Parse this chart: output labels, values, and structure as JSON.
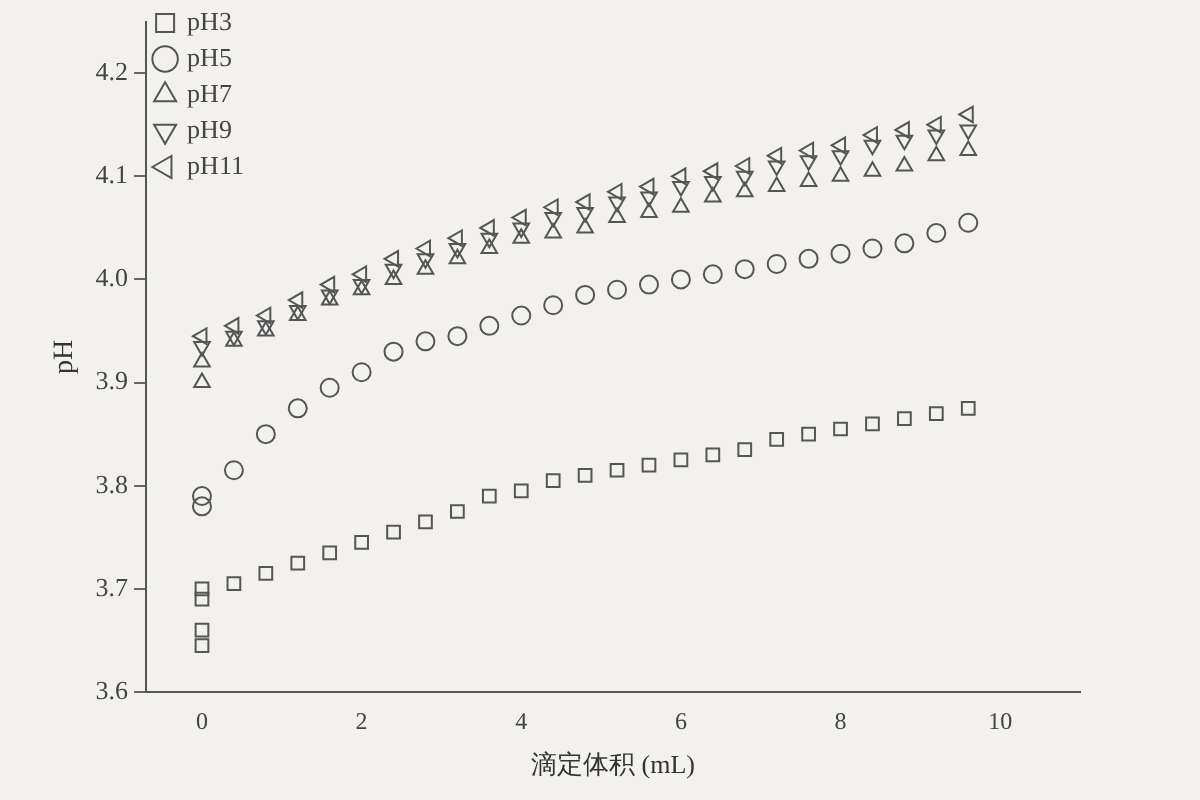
{
  "chart_data": {
    "type": "scatter",
    "xlabel": "滴定体积 (mL)",
    "ylabel": "pH",
    "xlim": [
      -0.7,
      11
    ],
    "xticks": [
      0,
      2,
      4,
      6,
      8,
      10
    ],
    "ylim": [
      3.6,
      4.25
    ],
    "yticks": [
      3.6,
      3.7,
      3.8,
      3.9,
      {
        "value": 4,
        "label": "4.0"
      },
      4.1,
      4.2
    ],
    "grid": false,
    "legend": "top left",
    "series": [
      {
        "name": "pH3",
        "color": "#555555",
        "marker": "square",
        "x": [
          0,
          0,
          0,
          0,
          0.4,
          0.8,
          1.2,
          1.6,
          2,
          2.4,
          2.8,
          3.2,
          3.6,
          4,
          4.4,
          4.8,
          5.2,
          5.6,
          6,
          6.4,
          6.8,
          7.2,
          7.6,
          8,
          8.4,
          8.8,
          9.2,
          9.6
        ],
        "values": [
          3.645,
          3.66,
          3.69,
          3.7,
          3.705,
          3.715,
          3.725,
          3.735,
          3.745,
          3.755,
          3.765,
          3.775,
          3.79,
          3.795,
          3.805,
          3.81,
          3.815,
          3.82,
          3.825,
          3.83,
          3.835,
          3.845,
          3.85,
          3.855,
          3.86,
          3.865,
          3.87,
          3.875
        ]
      },
      {
        "name": "pH5",
        "color": "#555555",
        "marker": "circle",
        "x": [
          0,
          0,
          0.4,
          0.8,
          1.2,
          1.6,
          2,
          2.4,
          2.8,
          3.2,
          3.6,
          4,
          4.4,
          4.8,
          5.2,
          5.6,
          6,
          6.4,
          6.8,
          7.2,
          7.6,
          8,
          8.4,
          8.8,
          9.2,
          9.6
        ],
        "values": [
          3.78,
          3.79,
          3.815,
          3.85,
          3.875,
          3.895,
          3.91,
          3.93,
          3.94,
          3.945,
          3.955,
          3.965,
          3.975,
          3.985,
          3.99,
          3.995,
          4.0,
          4.005,
          4.01,
          4.015,
          4.02,
          4.025,
          4.03,
          4.035,
          4.045,
          4.055
        ]
      },
      {
        "name": "pH7",
        "color": "#555555",
        "marker": "triangle",
        "x": [
          0,
          0,
          0.4,
          0.8,
          1.2,
          1.6,
          2,
          2.4,
          2.8,
          3.2,
          3.6,
          4,
          4.4,
          4.8,
          5.2,
          5.6,
          6,
          6.4,
          6.8,
          7.2,
          7.6,
          8,
          8.4,
          8.8,
          9.2,
          9.6
        ],
        "values": [
          3.9,
          3.92,
          3.94,
          3.95,
          3.965,
          3.98,
          3.99,
          4.0,
          4.01,
          4.02,
          4.03,
          4.04,
          4.045,
          4.05,
          4.06,
          4.065,
          4.07,
          4.08,
          4.085,
          4.09,
          4.095,
          4.1,
          4.105,
          4.11,
          4.12,
          4.125
        ]
      },
      {
        "name": "pH9",
        "color": "#555555",
        "marker": "triangle-down",
        "x": [
          0,
          0.4,
          0.8,
          1.2,
          1.6,
          2,
          2.4,
          2.8,
          3.2,
          3.6,
          4,
          4.4,
          4.8,
          5.2,
          5.6,
          6,
          6.4,
          6.8,
          7.2,
          7.6,
          8,
          8.4,
          8.8,
          9.2,
          9.6
        ],
        "values": [
          3.935,
          3.945,
          3.955,
          3.97,
          3.985,
          3.995,
          4.01,
          4.02,
          4.03,
          4.04,
          4.05,
          4.06,
          4.065,
          4.075,
          4.08,
          4.09,
          4.095,
          4.1,
          4.11,
          4.115,
          4.12,
          4.13,
          4.135,
          4.14,
          4.145
        ]
      },
      {
        "name": "pH11",
        "color": "#555555",
        "marker": "triangle-left",
        "x": [
          0,
          0.4,
          0.8,
          1.2,
          1.6,
          2,
          2.4,
          2.8,
          3.2,
          3.6,
          4,
          4.4,
          4.8,
          5.2,
          5.6,
          6,
          6.4,
          6.8,
          7.2,
          7.6,
          8,
          8.4,
          8.8,
          9.2,
          9.6
        ],
        "values": [
          3.945,
          3.955,
          3.965,
          3.98,
          3.995,
          4.005,
          4.02,
          4.03,
          4.04,
          4.05,
          4.06,
          4.07,
          4.075,
          4.085,
          4.09,
          4.1,
          4.105,
          4.11,
          4.12,
          4.125,
          4.13,
          4.14,
          4.145,
          4.15,
          4.16
        ]
      }
    ]
  }
}
